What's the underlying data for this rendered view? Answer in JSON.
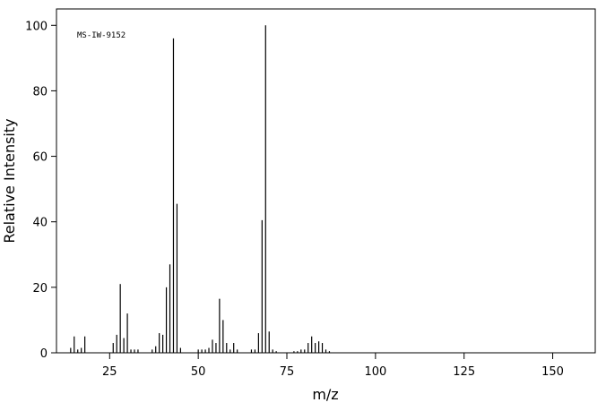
{
  "chart_data": {
    "type": "stick",
    "annotation": "MS-IW-9152",
    "x_label": "m/z",
    "y_label": "Relative Intensity",
    "x": [
      14,
      15,
      16,
      17,
      18,
      26,
      27,
      28,
      29,
      30,
      31,
      32,
      33,
      37,
      38,
      39,
      40,
      41,
      42,
      43,
      44,
      45,
      50,
      51,
      52,
      53,
      54,
      55,
      56,
      57,
      58,
      59,
      60,
      61,
      65,
      66,
      67,
      68,
      69,
      70,
      71,
      72,
      77,
      78,
      79,
      80,
      81,
      82,
      83,
      84,
      85,
      86,
      87
    ],
    "values": [
      1.5,
      5,
      1,
      1.5,
      5,
      3,
      5.5,
      21,
      4.5,
      12,
      1,
      1,
      1,
      1,
      2,
      6,
      5.5,
      20,
      27,
      96,
      45.5,
      1.5,
      1,
      1,
      1,
      1.5,
      4,
      3,
      16.5,
      10,
      3,
      1,
      3,
      1,
      1,
      1,
      6,
      40.5,
      100,
      6.5,
      1,
      0.5,
      0.5,
      0.5,
      1,
      1,
      3,
      5,
      3,
      3.5,
      3,
      1,
      0.5
    ],
    "color": "#000000",
    "xlim": [
      10,
      162
    ],
    "xticks": [
      25,
      50,
      75,
      100,
      125,
      150
    ],
    "ylim": [
      0,
      105
    ],
    "yticks": [
      0,
      20,
      40,
      60,
      80,
      100
    ]
  }
}
